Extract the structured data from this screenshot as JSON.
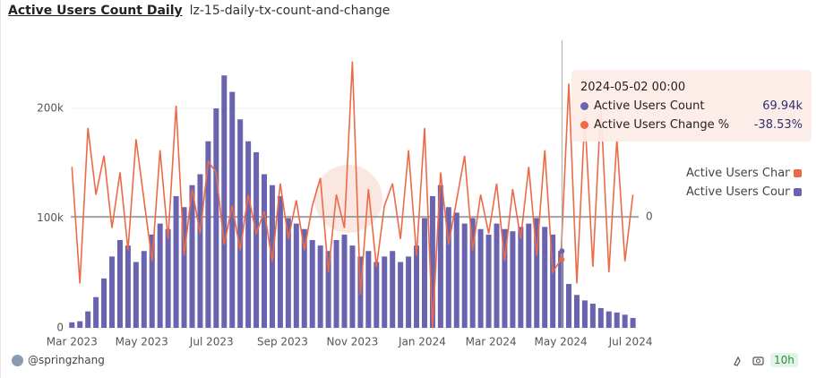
{
  "chart_data": {
    "type": "bar",
    "title": "Active Users Count Daily",
    "subtitle": "lz-15-daily-tx-count-and-change",
    "x": [
      "2023-03-01",
      "2023-03-08",
      "2023-03-15",
      "2023-03-22",
      "2023-03-29",
      "2023-04-05",
      "2023-04-12",
      "2023-04-19",
      "2023-04-26",
      "2023-05-03",
      "2023-05-10",
      "2023-05-17",
      "2023-05-24",
      "2023-05-31",
      "2023-06-07",
      "2023-06-14",
      "2023-06-21",
      "2023-06-28",
      "2023-07-05",
      "2023-07-12",
      "2023-07-19",
      "2023-07-26",
      "2023-08-02",
      "2023-08-09",
      "2023-08-16",
      "2023-08-23",
      "2023-08-30",
      "2023-09-06",
      "2023-09-13",
      "2023-09-20",
      "2023-09-27",
      "2023-10-04",
      "2023-10-11",
      "2023-10-18",
      "2023-10-25",
      "2023-11-01",
      "2023-11-08",
      "2023-11-15",
      "2023-11-22",
      "2023-11-29",
      "2023-12-06",
      "2023-12-13",
      "2023-12-20",
      "2023-12-27",
      "2024-01-03",
      "2024-01-10",
      "2024-01-17",
      "2024-01-24",
      "2024-01-31",
      "2024-02-07",
      "2024-02-14",
      "2024-02-21",
      "2024-02-28",
      "2024-03-06",
      "2024-03-13",
      "2024-03-20",
      "2024-03-27",
      "2024-04-03",
      "2024-04-10",
      "2024-04-17",
      "2024-04-24",
      "2024-05-01",
      "2024-05-08",
      "2024-05-15",
      "2024-05-22",
      "2024-05-29",
      "2024-06-05",
      "2024-06-12",
      "2024-06-19",
      "2024-06-26",
      "2024-07-03"
    ],
    "series": [
      {
        "name": "Active Users Count",
        "type": "bar",
        "color": "#6a64b0",
        "values": [
          5000,
          6000,
          15000,
          28000,
          45000,
          65000,
          80000,
          75000,
          60000,
          70000,
          85000,
          95000,
          90000,
          120000,
          110000,
          130000,
          140000,
          170000,
          200000,
          230000,
          215000,
          190000,
          170000,
          160000,
          140000,
          130000,
          120000,
          100000,
          95000,
          90000,
          80000,
          75000,
          70000,
          80000,
          85000,
          75000,
          65000,
          70000,
          60000,
          65000,
          70000,
          60000,
          65000,
          75000,
          100000,
          120000,
          130000,
          110000,
          105000,
          95000,
          100000,
          90000,
          85000,
          95000,
          90000,
          88000,
          92000,
          95000,
          100000,
          92000,
          85000,
          70000,
          40000,
          30000,
          25000,
          22000,
          18000,
          15000,
          14000,
          12000,
          9000
        ]
      },
      {
        "name": "Active Users Change %",
        "type": "line",
        "axis": "y2",
        "color": "#ec6a45",
        "values": [
          45,
          -60,
          80,
          20,
          55,
          -10,
          40,
          -30,
          70,
          15,
          -40,
          60,
          -20,
          100,
          -35,
          25,
          -15,
          50,
          40,
          -25,
          10,
          -30,
          20,
          -15,
          5,
          -40,
          30,
          -20,
          15,
          -30,
          10,
          35,
          -50,
          20,
          -10,
          140,
          -70,
          25,
          -45,
          10,
          30,
          -20,
          60,
          -35,
          80,
          -100,
          40,
          -25,
          15,
          55,
          -30,
          20,
          -15,
          30,
          -40,
          25,
          -20,
          45,
          -35,
          60,
          -50,
          -38.53,
          120,
          -60,
          90,
          -45,
          100,
          -50,
          70,
          -40,
          20
        ]
      }
    ],
    "xlim": [
      "2023-02-28",
      "2024-07-08"
    ],
    "xticks": [
      {
        "value": "2023-03-01",
        "label": "Mar 2023"
      },
      {
        "value": "2023-05-01",
        "label": "May 2023"
      },
      {
        "value": "2023-07-01",
        "label": "Jul 2023"
      },
      {
        "value": "2023-09-01",
        "label": "Sep 2023"
      },
      {
        "value": "2023-11-01",
        "label": "Nov 2023"
      },
      {
        "value": "2024-01-01",
        "label": "Jan 2024"
      },
      {
        "value": "2024-03-01",
        "label": "Mar 2024"
      },
      {
        "value": "2024-05-01",
        "label": "May 2024"
      },
      {
        "value": "2024-07-01",
        "label": "Jul 2024"
      }
    ],
    "ylim": [
      0,
      262000
    ],
    "yticks": [
      0,
      {
        "value": 100000,
        "label": "100k"
      },
      {
        "value": 200000,
        "label": "200k"
      }
    ],
    "y2lim": [
      -100,
      159
    ],
    "y2ticks": [
      0
    ],
    "grid": true,
    "tooltip": {
      "x": "2024-05-02 00:00",
      "values": [
        69940,
        -38.53
      ],
      "value_labels": [
        "69.94k",
        "-38.53%"
      ]
    },
    "author": "@springzhang",
    "age": "10h"
  }
}
